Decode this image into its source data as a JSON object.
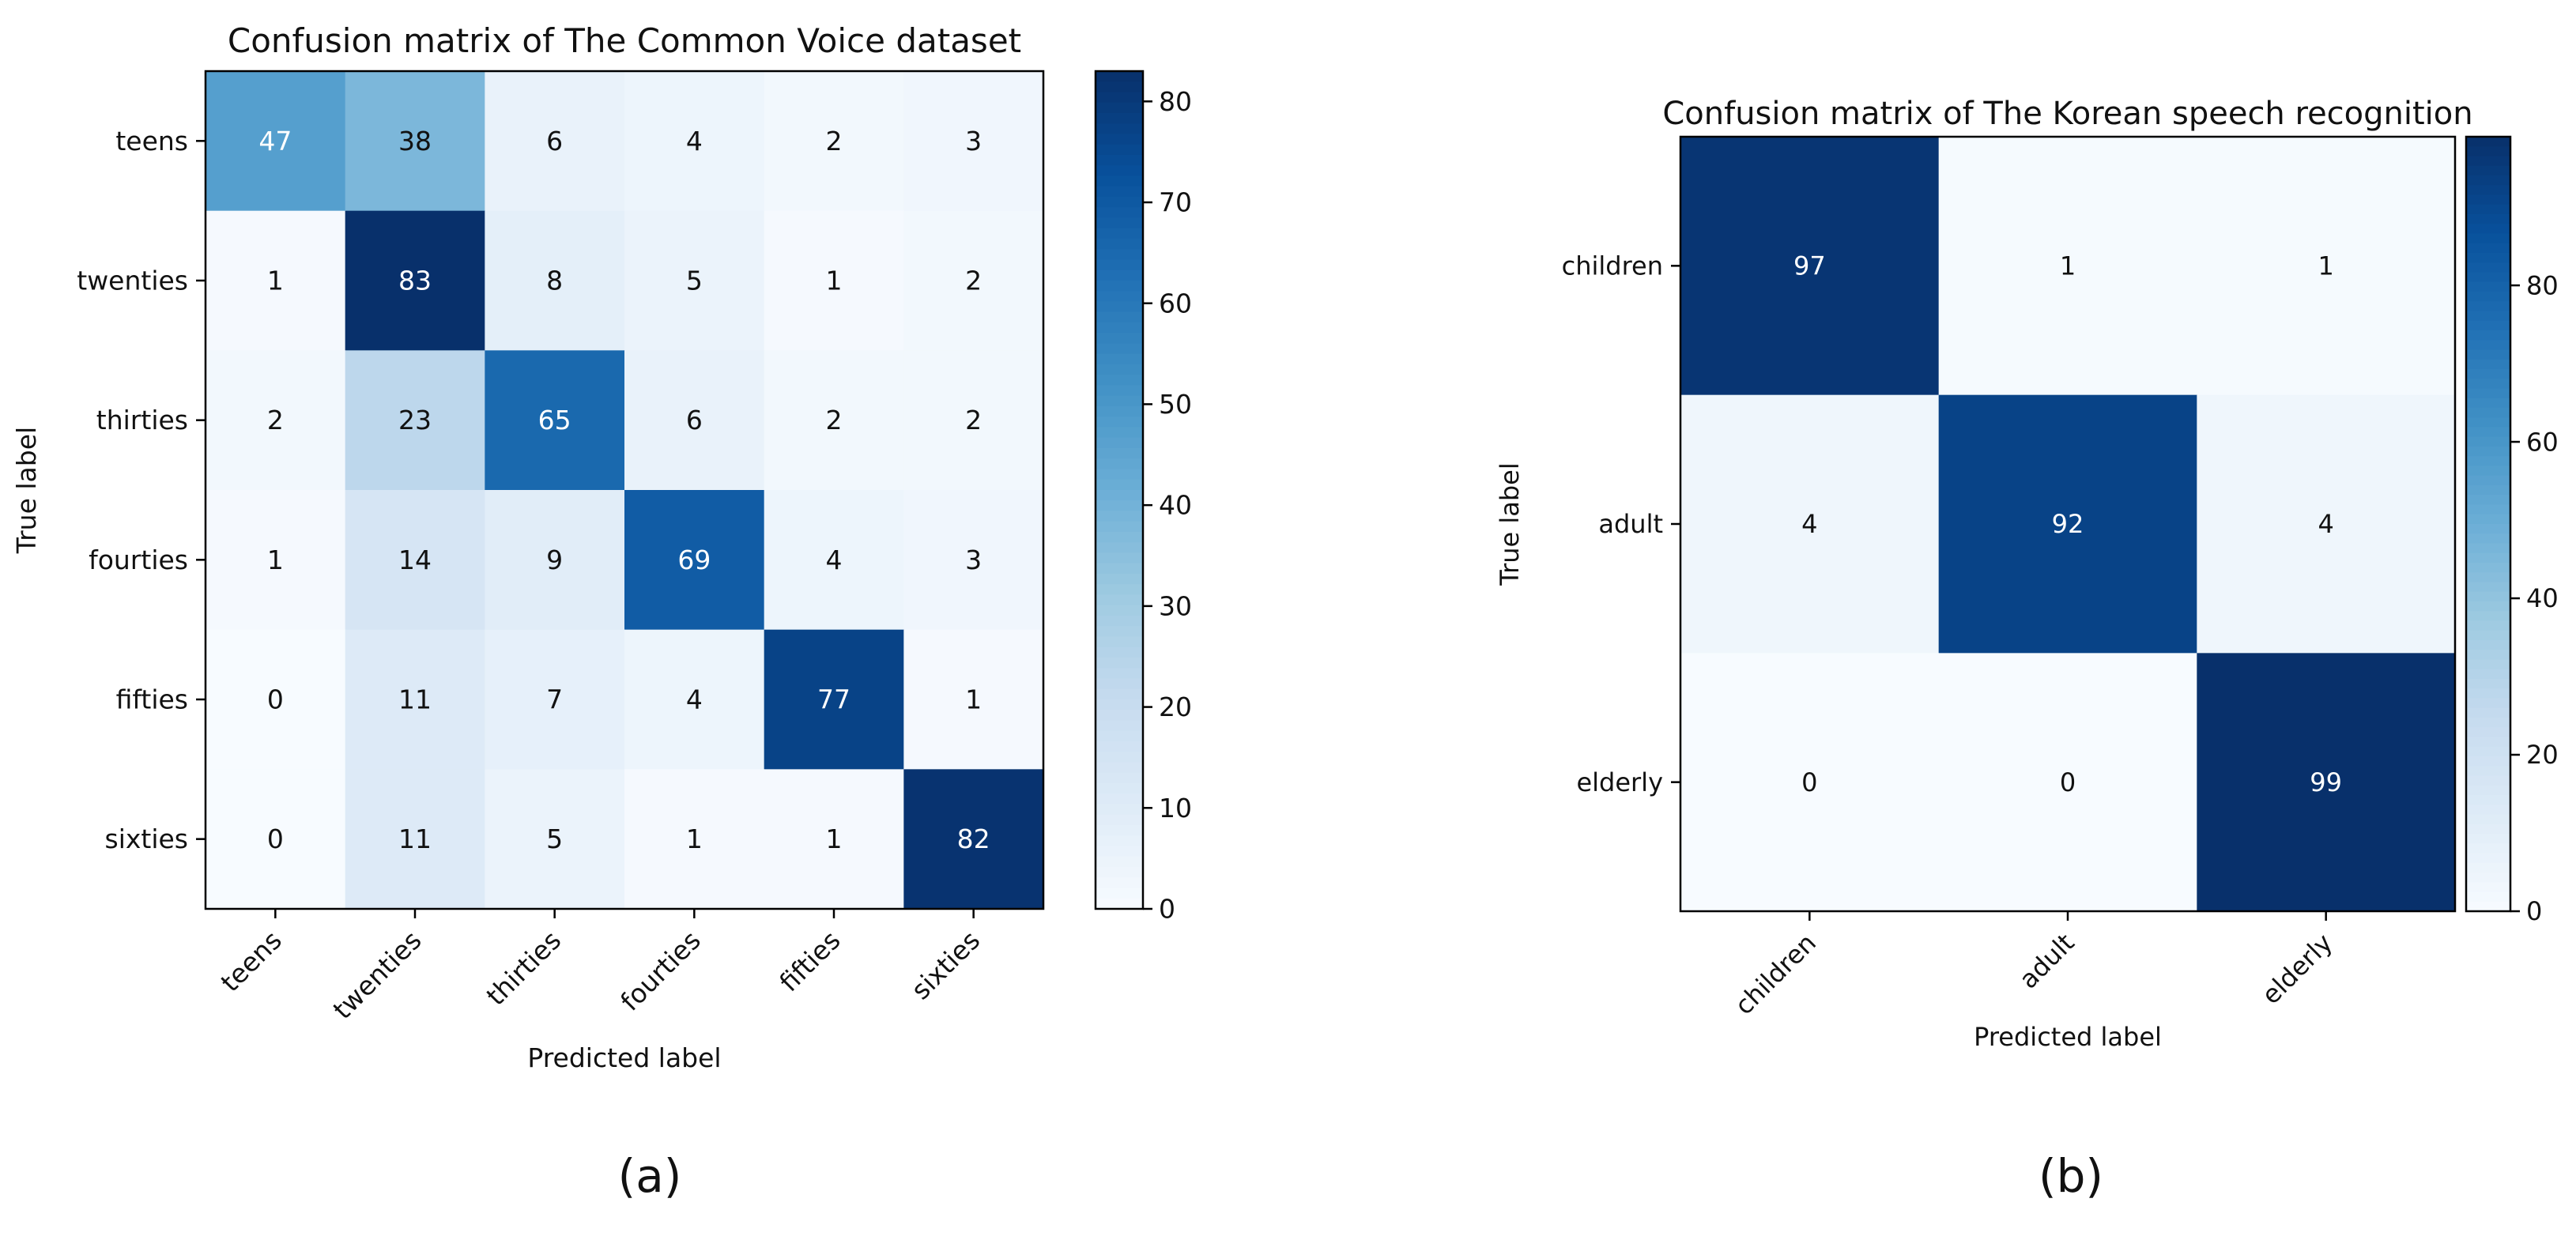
{
  "chart_data": [
    {
      "type": "heatmap",
      "panel_label": "(a)",
      "title": "Confusion matrix of The Common Voice dataset",
      "xlabel": "Predicted label",
      "ylabel": "True label",
      "colormap": "Blues",
      "vmin": 0,
      "vmax": 83,
      "row_labels": [
        "teens",
        "twenties",
        "thirties",
        "fourties",
        "fifties",
        "sixties"
      ],
      "col_labels": [
        "teens",
        "twenties",
        "thirties",
        "fourties",
        "fifties",
        "sixties"
      ],
      "matrix": [
        [
          47,
          38,
          6,
          4,
          2,
          3
        ],
        [
          1,
          83,
          8,
          5,
          1,
          2
        ],
        [
          2,
          23,
          65,
          6,
          2,
          2
        ],
        [
          1,
          14,
          9,
          69,
          4,
          3
        ],
        [
          0,
          11,
          7,
          4,
          77,
          1
        ],
        [
          0,
          11,
          5,
          1,
          1,
          82
        ]
      ],
      "colorbar_ticks": [
        "0",
        "10",
        "20",
        "30",
        "40",
        "50",
        "60",
        "70",
        "80"
      ]
    },
    {
      "type": "heatmap",
      "panel_label": "(b)",
      "title": "Confusion matrix of The Korean speech recognition",
      "xlabel": "Predicted label",
      "ylabel": "True label",
      "colormap": "Blues",
      "vmin": 0,
      "vmax": 99,
      "row_labels": [
        "children",
        "adult",
        "elderly"
      ],
      "col_labels": [
        "children",
        "adult",
        "elderly"
      ],
      "matrix": [
        [
          97,
          1,
          1
        ],
        [
          4,
          92,
          4
        ],
        [
          0,
          0,
          99
        ]
      ],
      "colorbar_ticks": [
        "0",
        "20",
        "40",
        "60",
        "80"
      ]
    }
  ]
}
